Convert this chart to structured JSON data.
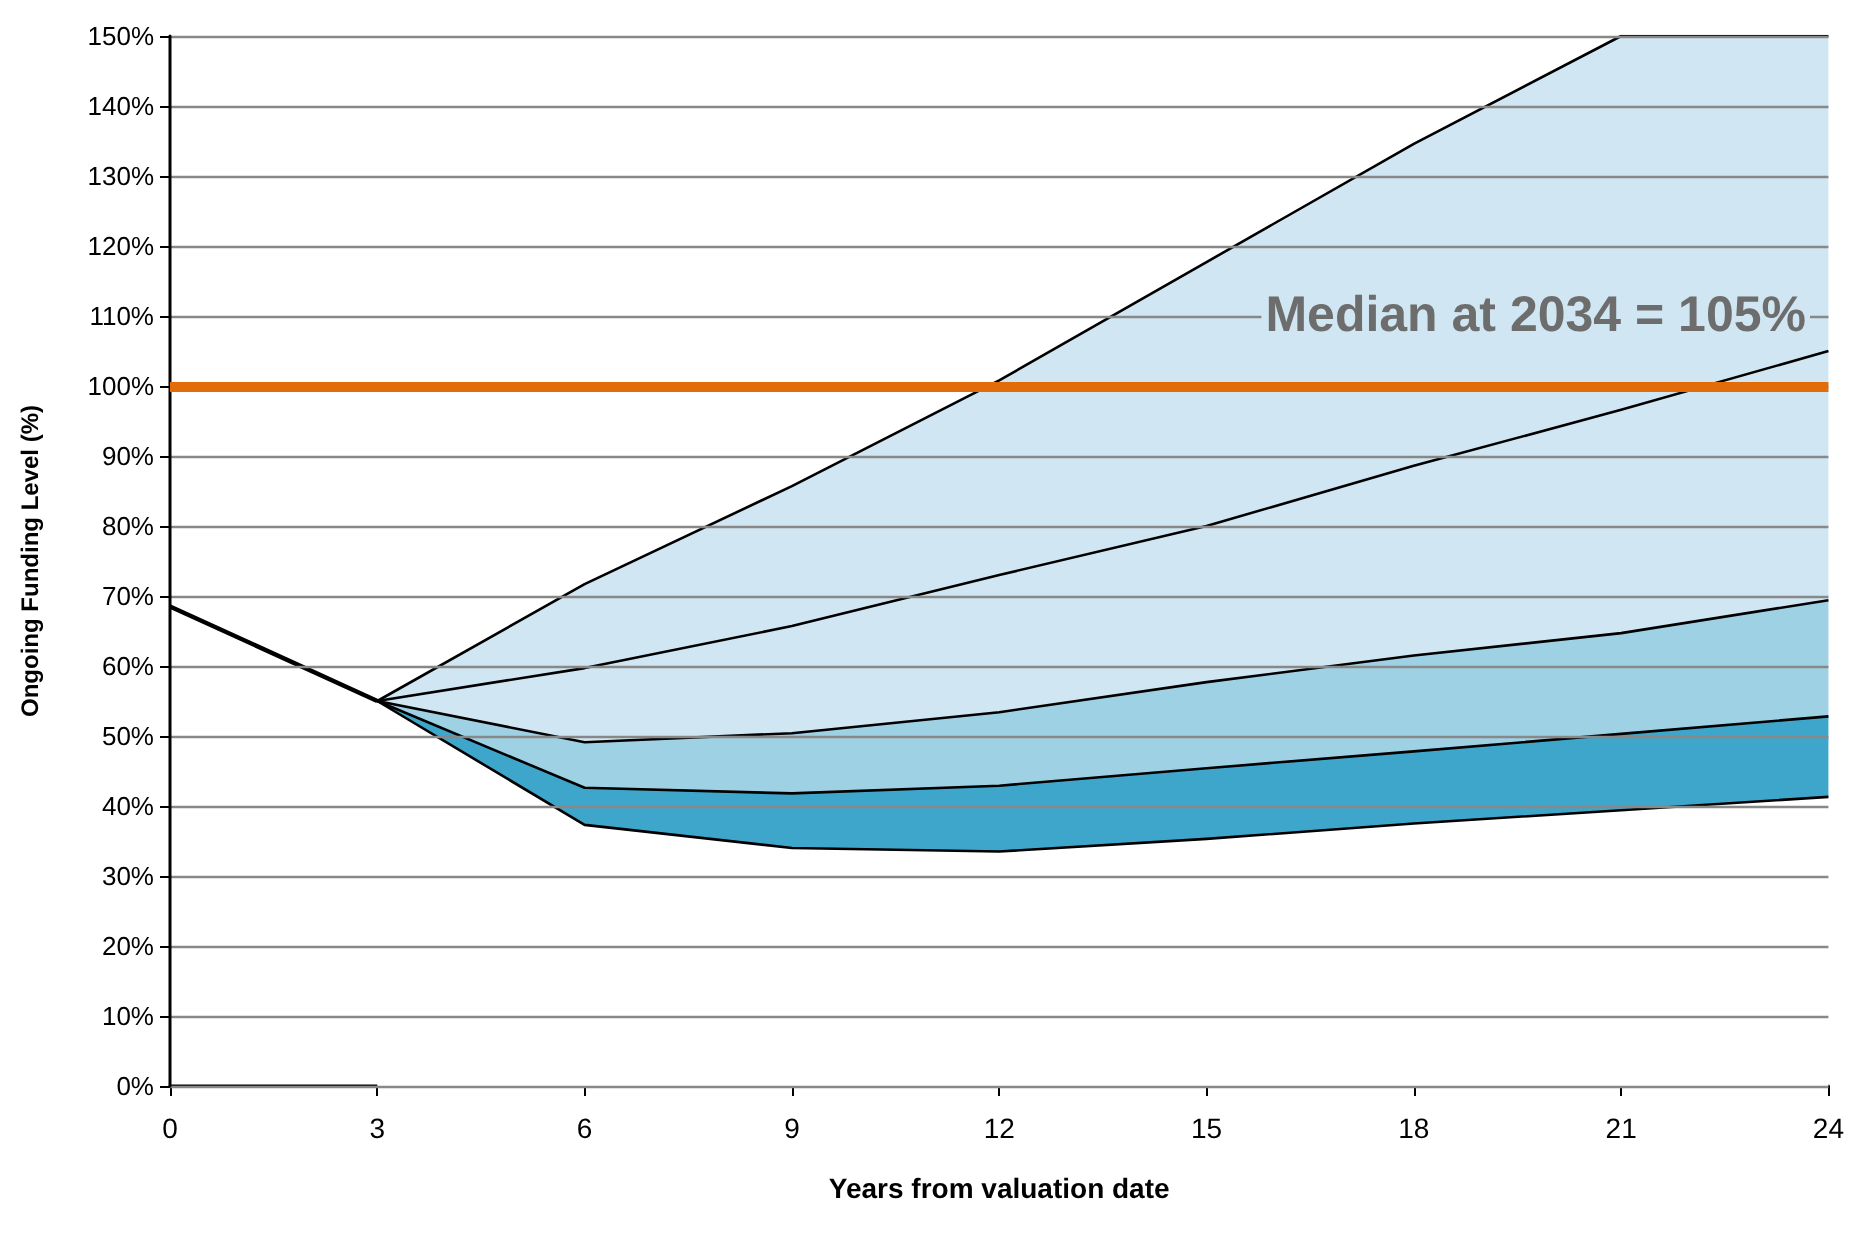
{
  "chart_data": {
    "type": "line",
    "stacked": true,
    "xlabel": "Years from valuation date",
    "ylabel": "Ongoing Funding Level (%)",
    "x": [
      3,
      6,
      9,
      12,
      15,
      18,
      21,
      24
    ],
    "series": [
      {
        "type": "area",
        "color": "#ffffff",
        "values": [
          55,
          37.3,
          34,
          33.5,
          35.3,
          37.5,
          39.4,
          41.3
        ]
      },
      {
        "type": "area",
        "color": "#3fa6cb",
        "values": [
          0,
          5.3,
          7.8,
          9.4,
          10.1,
          10.3,
          10.9,
          11.5
        ]
      },
      {
        "type": "area",
        "color": "#9fd1e5",
        "values": [
          0,
          6.5,
          8.6,
          10.5,
          12.3,
          13.7,
          14.4,
          16.6
        ]
      },
      {
        "type": "area",
        "color": "#d0e7f3",
        "values": [
          0,
          22.6,
          35.3,
          47.4,
          60,
          73.1,
          85.3,
          80.6
        ]
      },
      {
        "color": "#000000",
        "values": [
          55,
          59.7,
          65.7,
          73,
          80,
          88.6,
          96.6,
          105
        ]
      },
      {
        "color": "#000000",
        "x": [
          0,
          3
        ],
        "values": [
          68.5,
          55
        ]
      }
    ],
    "xlim": [
      0,
      24
    ],
    "xticks": [
      0,
      3,
      6,
      9,
      12,
      15,
      18,
      21,
      24
    ],
    "ylim": [
      0,
      150
    ],
    "yticks": [
      {
        "value": 0,
        "label": "0%"
      },
      {
        "value": 10,
        "label": "10%"
      },
      {
        "value": 20,
        "label": "20%"
      },
      {
        "value": 30,
        "label": "30%"
      },
      {
        "value": 40,
        "label": "40%"
      },
      {
        "value": 50,
        "label": "50%"
      },
      {
        "value": 60,
        "label": "60%"
      },
      {
        "value": 70,
        "label": "70%"
      },
      {
        "value": 80,
        "label": "80%"
      },
      {
        "value": 90,
        "label": "90%"
      },
      {
        "value": 100,
        "label": "100%"
      },
      {
        "value": 110,
        "label": "110%"
      },
      {
        "value": 120,
        "label": "120%"
      },
      {
        "value": 130,
        "label": "130%"
      },
      {
        "value": 140,
        "label": "140%"
      },
      {
        "value": 150,
        "label": "150%"
      }
    ],
    "ref_lines": [
      {
        "axis": "y",
        "value": 100,
        "color": "#e36c0a"
      }
    ],
    "annotations": [
      "Median at 2034 = 105%"
    ],
    "grid": "y",
    "marker": "none",
    "line_style": "solid"
  }
}
